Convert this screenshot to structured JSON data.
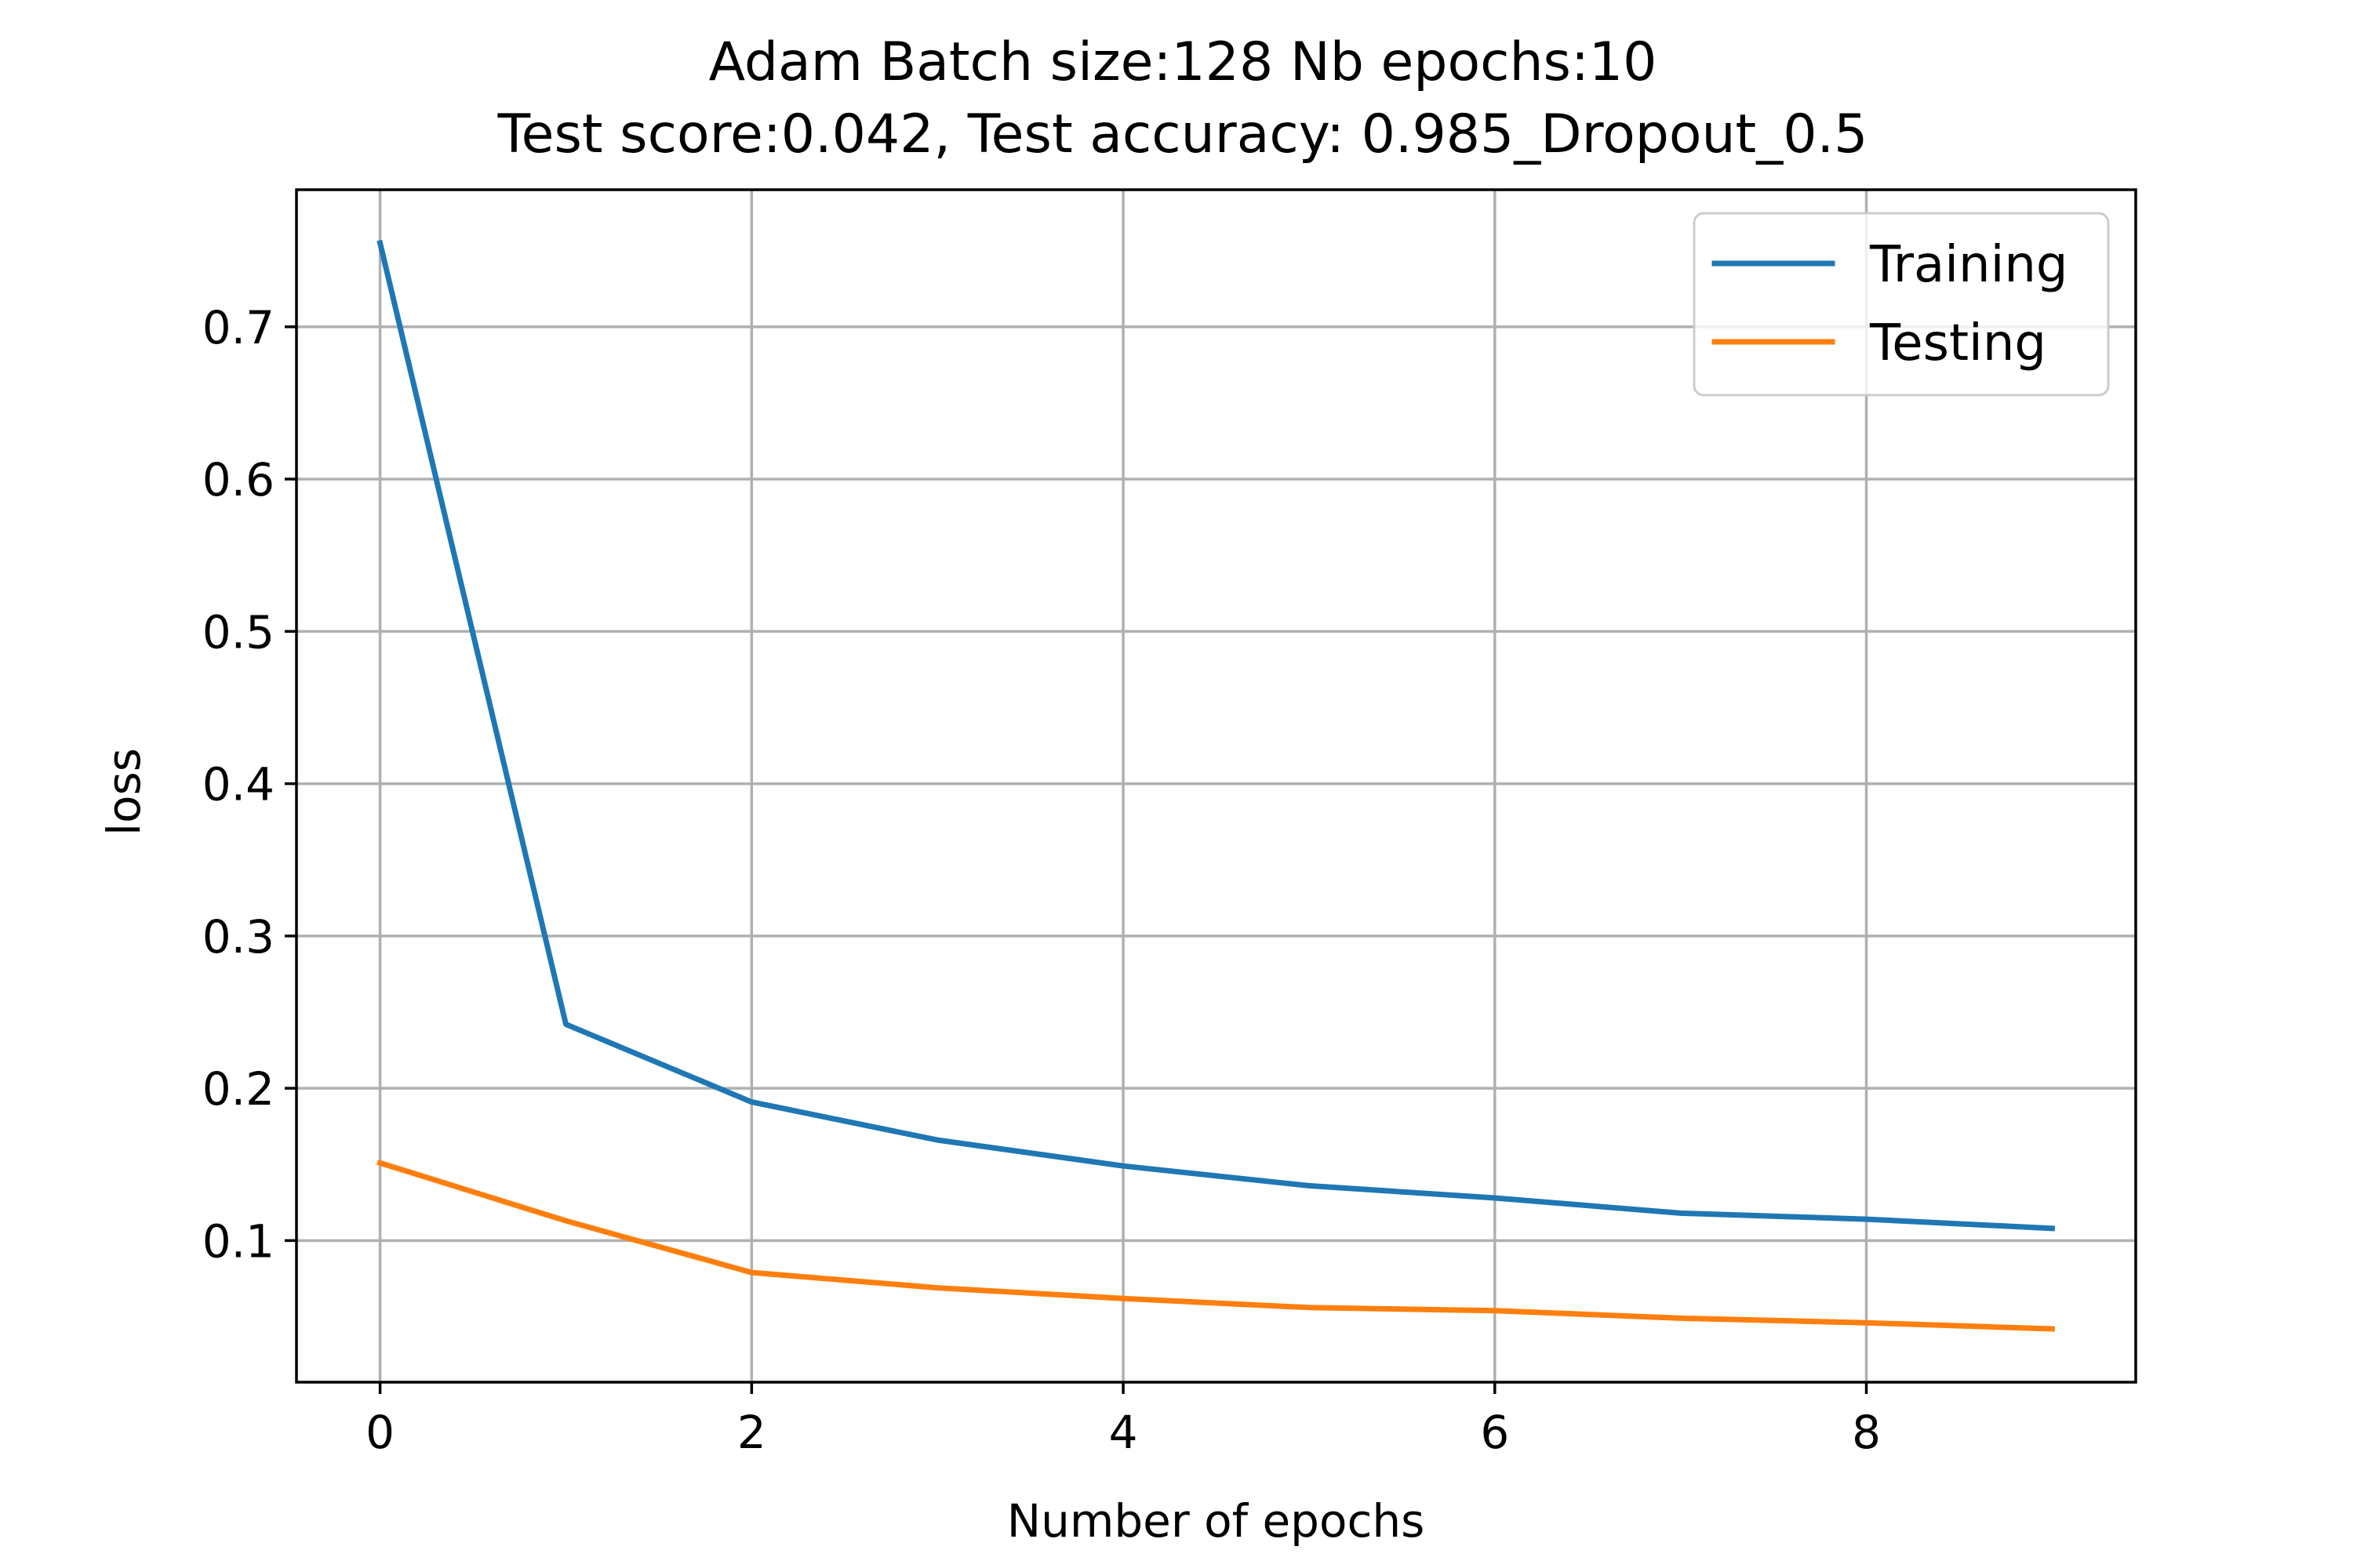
{
  "chart_data": {
    "type": "line",
    "title_line1": "Adam Batch size:128 Nb epochs:10",
    "title_line2": "Test score:0.042, Test accuracy: 0.985_Dropout_0.5",
    "xlabel": "Number of epochs",
    "ylabel": "loss",
    "x": [
      0,
      1,
      2,
      3,
      4,
      5,
      6,
      7,
      8,
      9
    ],
    "xlim": [
      -0.45,
      9.45
    ],
    "ylim": [
      0.007,
      0.79
    ],
    "xticks": [
      0,
      2,
      4,
      6,
      8
    ],
    "xtick_labels": [
      "0",
      "2",
      "4",
      "6",
      "8"
    ],
    "yticks": [
      0.1,
      0.2,
      0.3,
      0.4,
      0.5,
      0.6,
      0.7
    ],
    "ytick_labels": [
      "0.1",
      "0.2",
      "0.3",
      "0.4",
      "0.5",
      "0.6",
      "0.7"
    ],
    "grid": true,
    "legend_position": "top-right",
    "series": [
      {
        "name": "Training",
        "color": "#1f77b4",
        "values": [
          0.755,
          0.242,
          0.191,
          0.166,
          0.149,
          0.136,
          0.128,
          0.118,
          0.114,
          0.108
        ]
      },
      {
        "name": "Testing",
        "color": "#ff7f0e",
        "values": [
          0.151,
          0.113,
          0.079,
          0.069,
          0.062,
          0.056,
          0.054,
          0.049,
          0.046,
          0.042
        ]
      }
    ]
  }
}
